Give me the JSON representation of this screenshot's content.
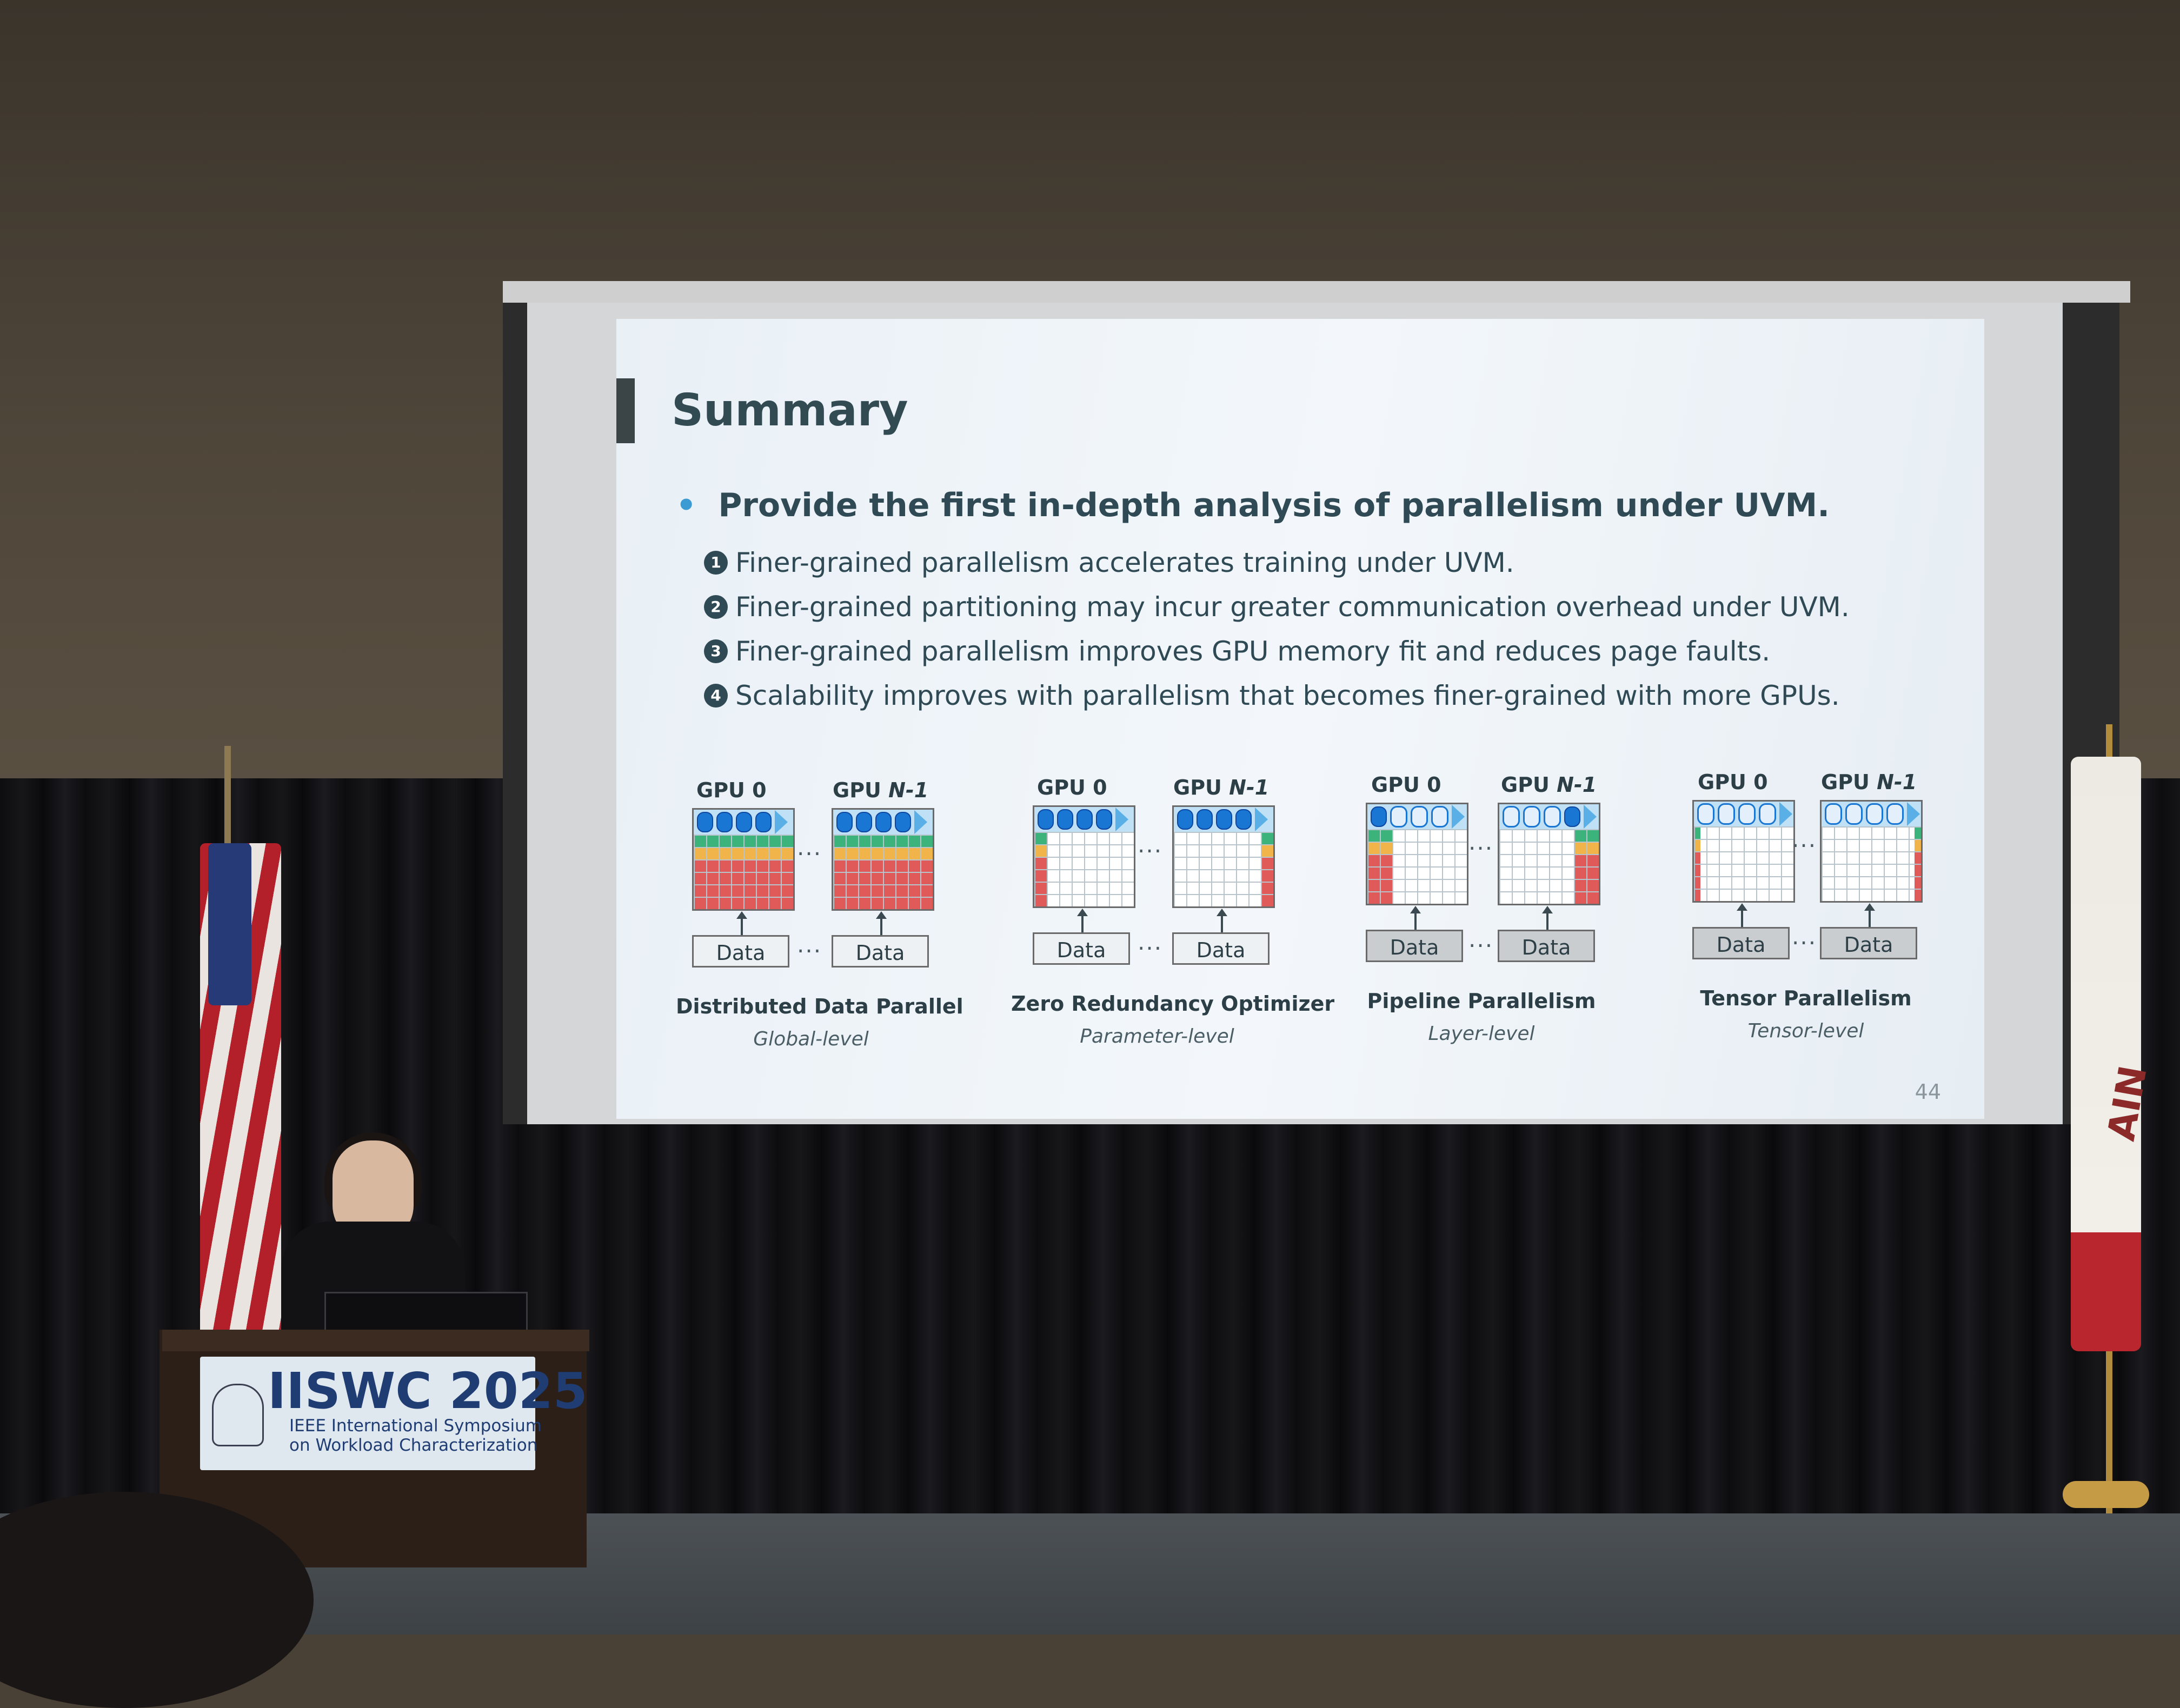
{
  "slide": {
    "title": "Summary",
    "main_bullet": "Provide the first in-depth analysis of parallelism under UVM.",
    "sub_items": [
      {
        "num": "1",
        "text": "Finer-grained parallelism accelerates training under UVM."
      },
      {
        "num": "2",
        "text": "Finer-grained partitioning may incur greater communication overhead under UVM."
      },
      {
        "num": "3",
        "text": "Finer-grained parallelism improves GPU memory fit and reduces page faults."
      },
      {
        "num": "4",
        "text": "Scalability improves with parallelism that becomes finer-grained with more GPUs."
      }
    ],
    "diagrams": [
      {
        "gpu_a": "GPU 0",
        "gpu_b_prefix": "GPU ",
        "gpu_b_italic": "N-1",
        "data_label": "Data",
        "ellipsis": "···",
        "name": "Distributed Data Parallel",
        "level": "Global-level"
      },
      {
        "gpu_a": "GPU 0",
        "gpu_b_prefix": "GPU ",
        "gpu_b_italic": "N-1",
        "data_label": "Data",
        "ellipsis": "···",
        "name": "Zero Redundancy Optimizer",
        "level": "Parameter-level"
      },
      {
        "gpu_a": "GPU 0",
        "gpu_b_prefix": "GPU ",
        "gpu_b_italic": "N-1",
        "data_label": "Data",
        "ellipsis": "···",
        "name": "Pipeline Parallelism",
        "level": "Layer-level"
      },
      {
        "gpu_a": "GPU 0",
        "gpu_b_prefix": "GPU ",
        "gpu_b_italic": "N-1",
        "data_label": "Data",
        "ellipsis": "···",
        "name": "Tensor Parallelism",
        "level": "Tensor-level"
      }
    ],
    "page_number": "44"
  },
  "podium_sign": {
    "title": "IISWC 2025",
    "line1": "IEEE International Symposium",
    "line2": "on Workload Characterization"
  },
  "flag_text": "AIN",
  "colors": {
    "slide_text": "#324a52",
    "bullet_accent": "#3c9bd3",
    "pill_blue": "#1976d2",
    "band_red": "#e05a5a",
    "band_orange": "#f0b44a",
    "band_green": "#3cb37a",
    "sign_blue": "#1f3c73"
  }
}
